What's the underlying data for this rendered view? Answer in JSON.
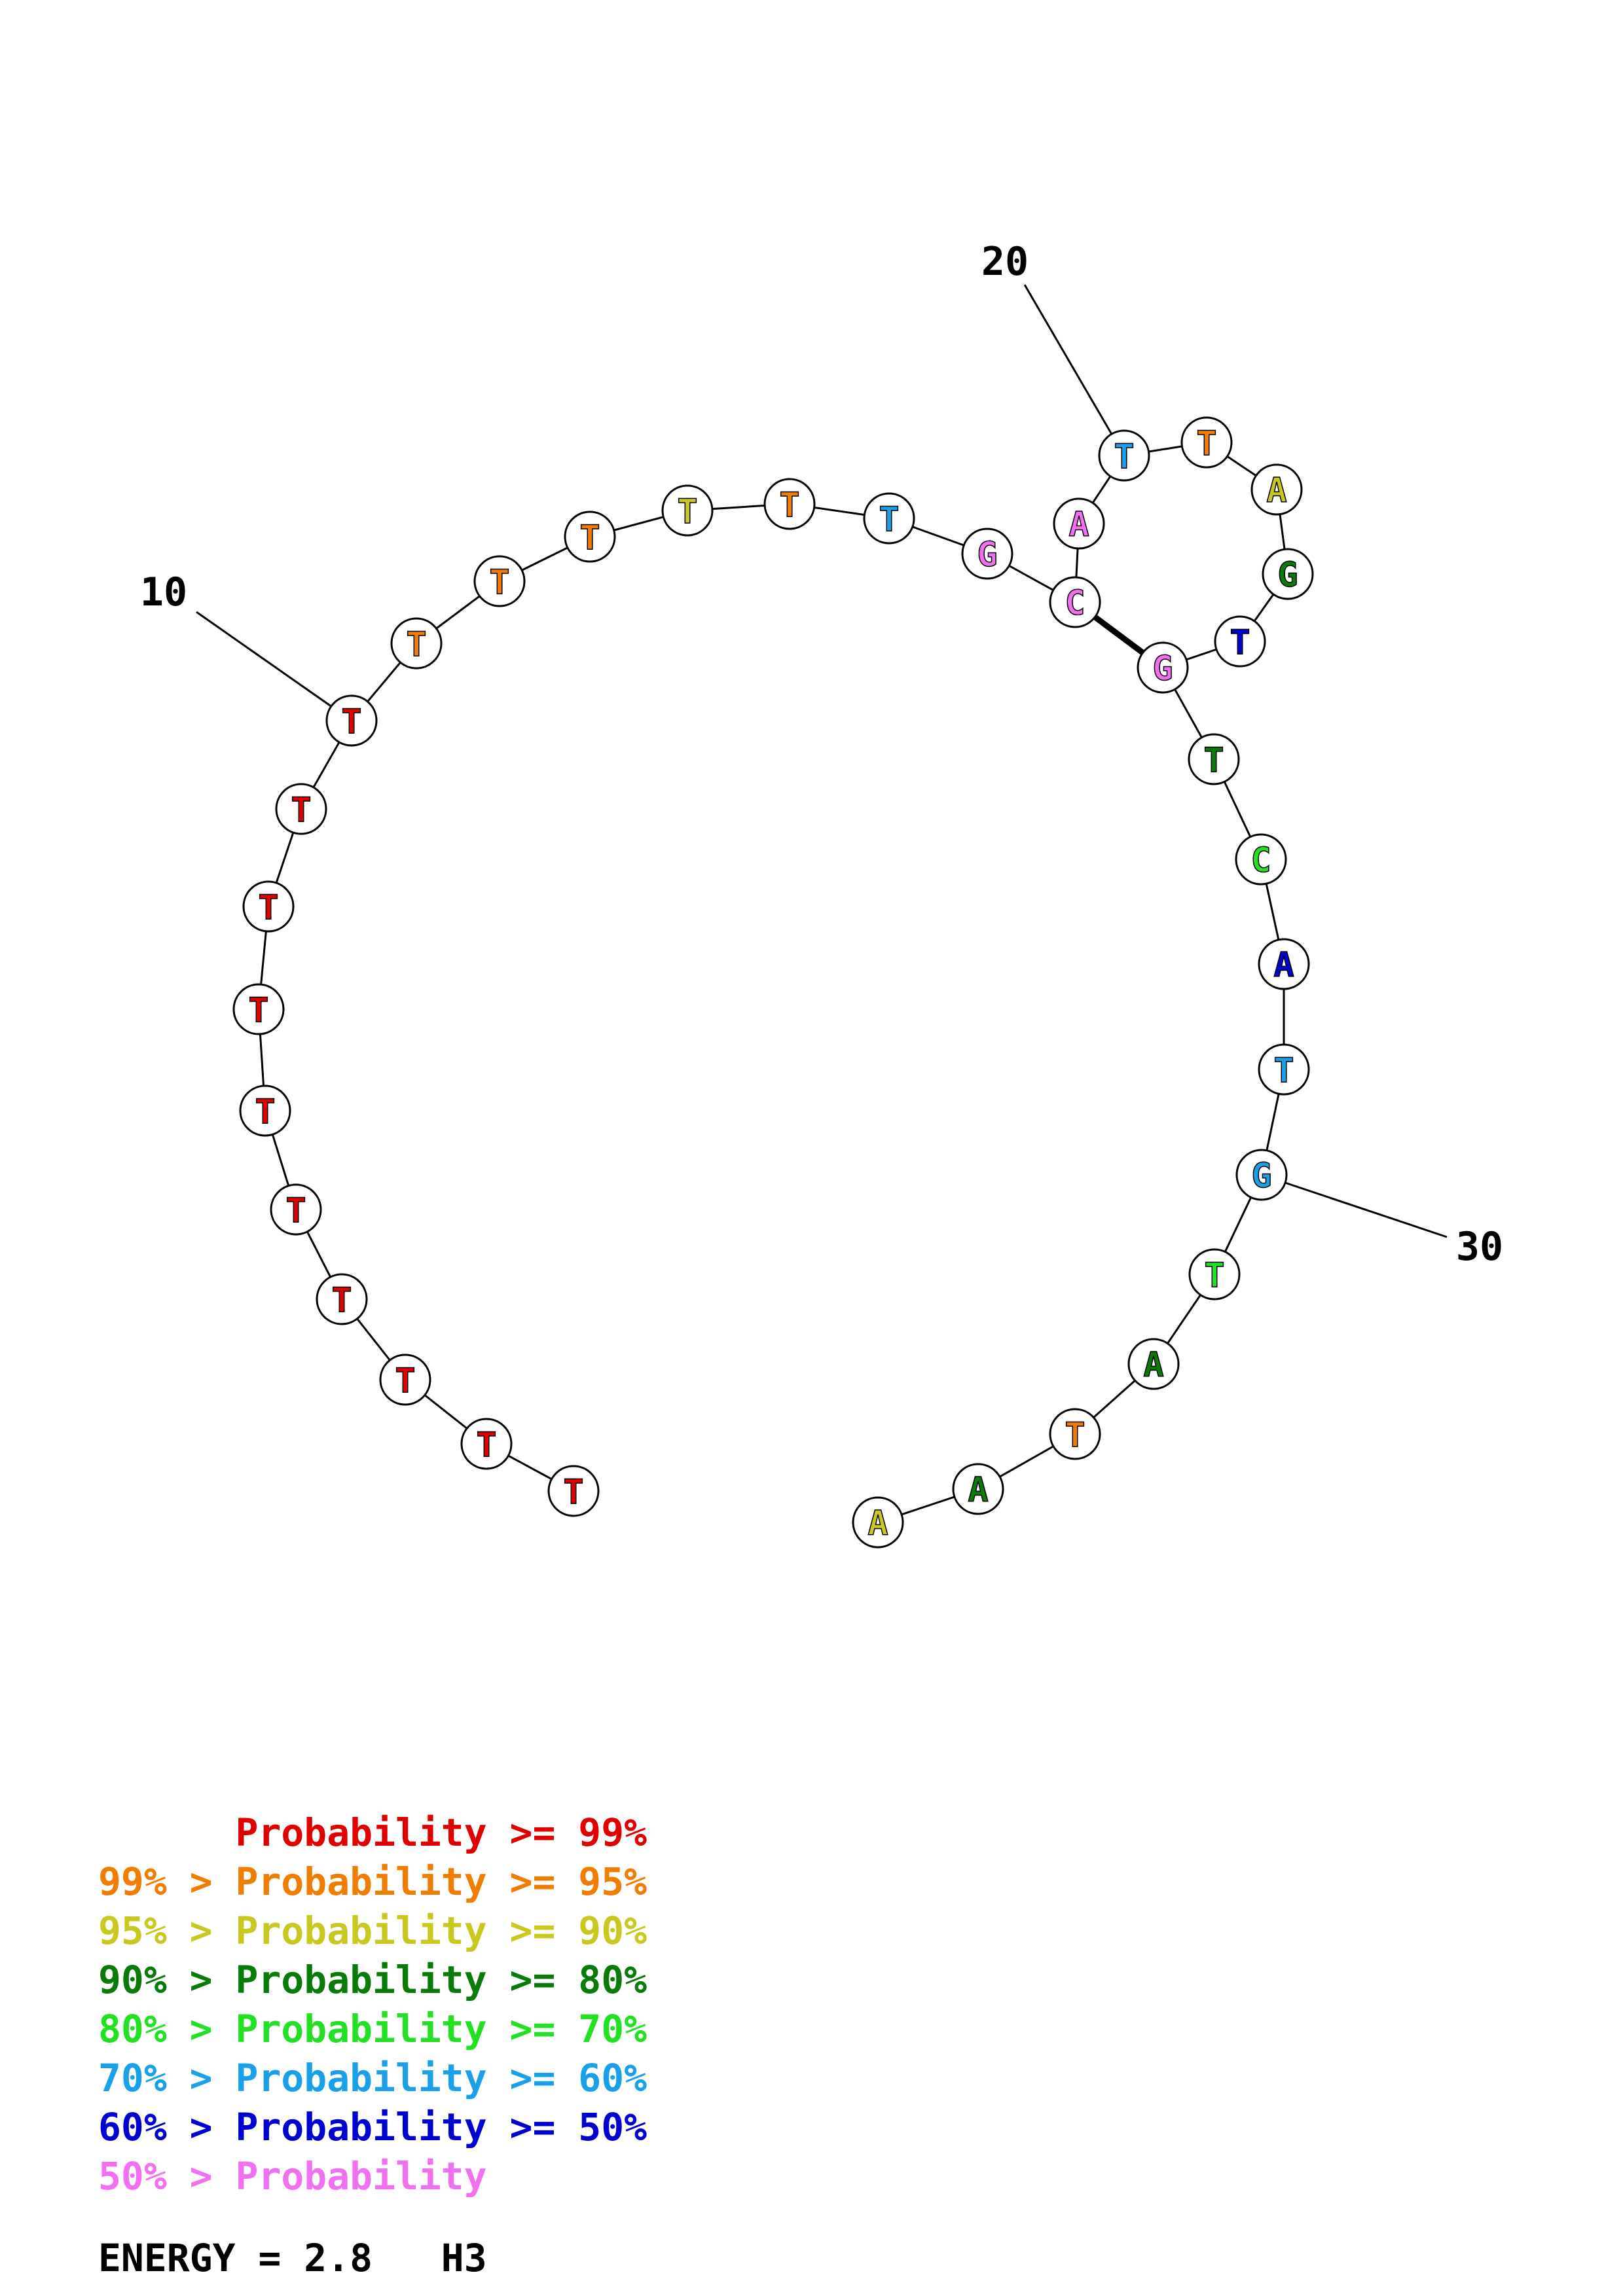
{
  "colors": {
    "p99": "#e00000",
    "p95": "#f07c00",
    "p90": "#c8c820",
    "p80": "#0a7a0a",
    "p70": "#22e022",
    "p60": "#1aa0e8",
    "p50": "#0000d0",
    "plow": "#f070f0"
  },
  "sequence": [
    {
      "base": "T",
      "color": "p99"
    },
    {
      "base": "T",
      "color": "p99"
    },
    {
      "base": "T",
      "color": "p99"
    },
    {
      "base": "T",
      "color": "p99"
    },
    {
      "base": "T",
      "color": "p99"
    },
    {
      "base": "T",
      "color": "p99"
    },
    {
      "base": "T",
      "color": "p99"
    },
    {
      "base": "T",
      "color": "p99"
    },
    {
      "base": "T",
      "color": "p99"
    },
    {
      "base": "T",
      "color": "p99"
    },
    {
      "base": "T",
      "color": "p95"
    },
    {
      "base": "T",
      "color": "p95"
    },
    {
      "base": "T",
      "color": "p95"
    },
    {
      "base": "T",
      "color": "p90"
    },
    {
      "base": "T",
      "color": "p95"
    },
    {
      "base": "T",
      "color": "p60"
    },
    {
      "base": "G",
      "color": "plow"
    },
    {
      "base": "C",
      "color": "plow"
    },
    {
      "base": "A",
      "color": "plow"
    },
    {
      "base": "T",
      "color": "p60"
    },
    {
      "base": "T",
      "color": "p95"
    },
    {
      "base": "A",
      "color": "p90"
    },
    {
      "base": "G",
      "color": "p80"
    },
    {
      "base": "T",
      "color": "p50"
    },
    {
      "base": "G",
      "color": "plow"
    },
    {
      "base": "T",
      "color": "p80"
    },
    {
      "base": "C",
      "color": "p70"
    },
    {
      "base": "A",
      "color": "p50"
    },
    {
      "base": "T",
      "color": "p60"
    },
    {
      "base": "G",
      "color": "p60"
    },
    {
      "base": "T",
      "color": "p70"
    },
    {
      "base": "A",
      "color": "p80"
    },
    {
      "base": "T",
      "color": "p95"
    },
    {
      "base": "A",
      "color": "p80"
    },
    {
      "base": "A",
      "color": "p90"
    }
  ],
  "pairs": [
    [
      18,
      25
    ]
  ],
  "ticks": [
    {
      "label": "10",
      "index": 10
    },
    {
      "label": "20",
      "index": 20
    },
    {
      "label": "30",
      "index": 30
    }
  ],
  "legend": [
    {
      "prefix": "    ",
      "text": "Probability >= 99%",
      "color": "p99"
    },
    {
      "prefix": "99% > ",
      "text": "Probability >= 95%",
      "color": "p95"
    },
    {
      "prefix": "95% > ",
      "text": "Probability >= 90%",
      "color": "p90"
    },
    {
      "prefix": "90% > ",
      "text": "Probability >= 80%",
      "color": "p80"
    },
    {
      "prefix": "80% > ",
      "text": "Probability >= 70%",
      "color": "p70"
    },
    {
      "prefix": "70% > ",
      "text": "Probability >= 60%",
      "color": "p60"
    },
    {
      "prefix": "60% > ",
      "text": "Probability >= 50%",
      "color": "p50"
    },
    {
      "prefix": "50% > ",
      "text": "Probability",
      "color": "plow"
    }
  ],
  "energy": {
    "text": "ENERGY = 2.8   H3"
  }
}
